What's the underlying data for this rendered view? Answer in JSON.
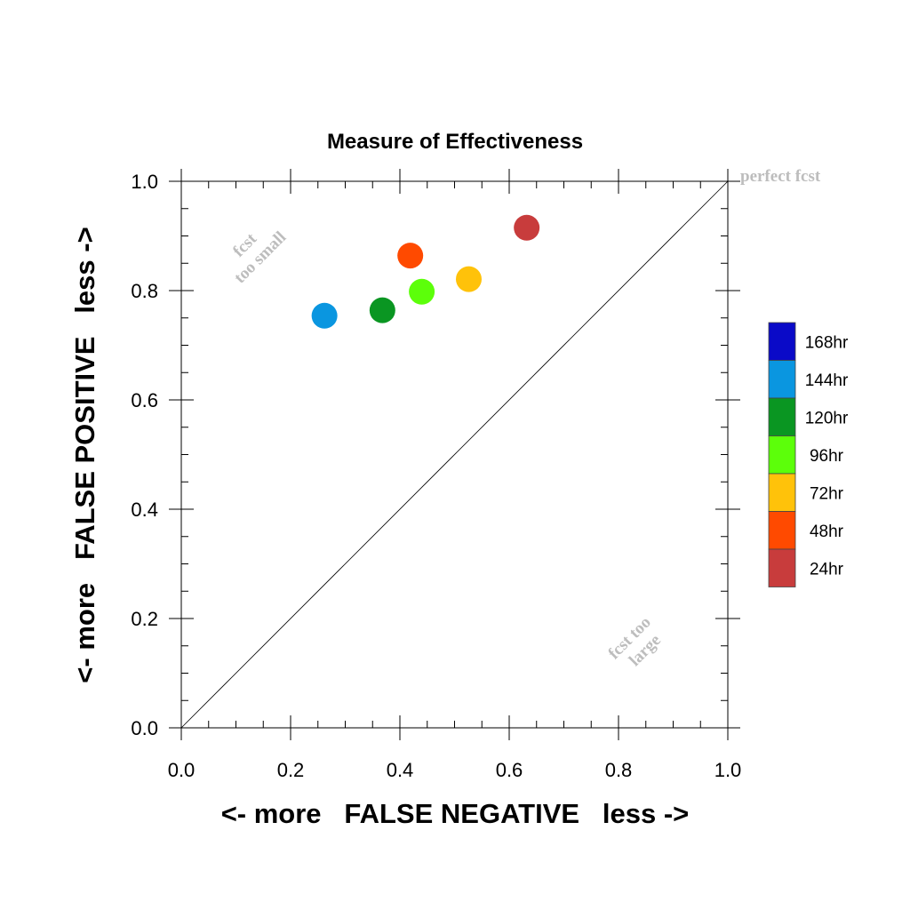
{
  "chart_data": {
    "type": "scatter",
    "title": "Measure of Effectiveness",
    "xlabel": "<- more   FALSE NEGATIVE   less ->",
    "ylabel": "<- more   FALSE POSITIVE   less ->",
    "xlim": [
      0.0,
      1.0
    ],
    "ylim": [
      0.0,
      1.0
    ],
    "xticks": [
      "0.0",
      "0.2",
      "0.4",
      "0.6",
      "0.8",
      "1.0"
    ],
    "yticks": [
      "0.0",
      "0.2",
      "0.4",
      "0.6",
      "0.8",
      "1.0"
    ],
    "grid": false,
    "diagonal_line": true,
    "legend_position": "right",
    "annotations": {
      "perfect": "perfect fcst",
      "too_small": [
        "fcst",
        "too small"
      ],
      "too_large": [
        "fcst too",
        "large"
      ]
    },
    "legend": [
      {
        "label": "168hr",
        "color": "#0a0ac8"
      },
      {
        "label": "144hr",
        "color": "#0a96e0"
      },
      {
        "label": "120hr",
        "color": "#0a9622"
      },
      {
        "label": "96hr",
        "color": "#5cff0a"
      },
      {
        "label": "72hr",
        "color": "#ffc20a"
      },
      {
        "label": "48hr",
        "color": "#ff4a00"
      },
      {
        "label": "24hr",
        "color": "#c83c3c"
      }
    ],
    "points": [
      {
        "series": "144hr",
        "x": 0.262,
        "y": 0.754,
        "color": "#0a96e0"
      },
      {
        "series": "120hr",
        "x": 0.368,
        "y": 0.764,
        "color": "#0a9622"
      },
      {
        "series": "96hr",
        "x": 0.44,
        "y": 0.798,
        "color": "#5cff0a"
      },
      {
        "series": "72hr",
        "x": 0.526,
        "y": 0.821,
        "color": "#ffc20a"
      },
      {
        "series": "48hr",
        "x": 0.419,
        "y": 0.864,
        "color": "#ff4a00"
      },
      {
        "series": "24hr",
        "x": 0.632,
        "y": 0.915,
        "color": "#c83c3c"
      }
    ]
  }
}
